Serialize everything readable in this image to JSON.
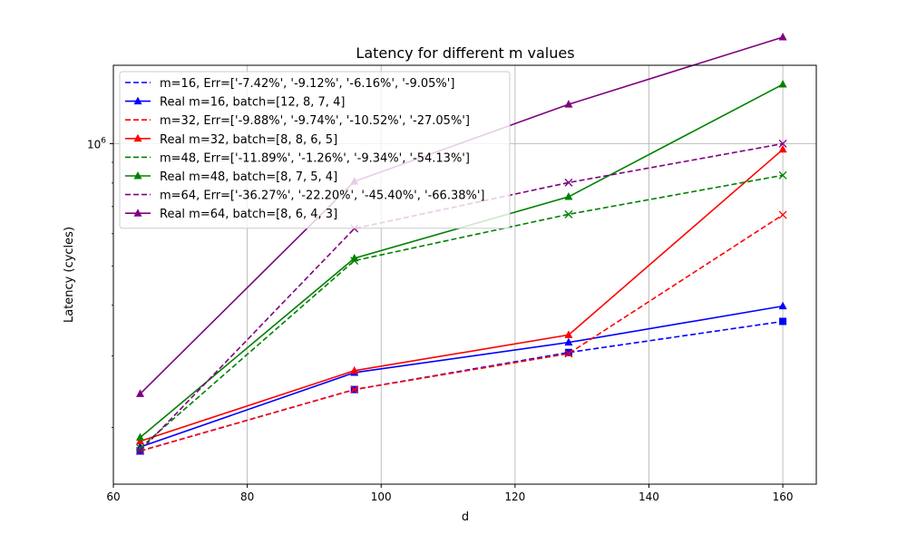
{
  "chart_data": {
    "type": "line",
    "title": "Latency for different m values",
    "xlabel": "d",
    "ylabel": "Latency (cycles)",
    "xlim": [
      60,
      165
    ],
    "ylim": [
      145000,
      1560000
    ],
    "yscale": "log",
    "grid": true,
    "legend_position": "upper-left",
    "x": [
      64,
      96,
      128,
      160
    ],
    "xticks": [
      60,
      80,
      100,
      120,
      140,
      160
    ],
    "yticks": [
      {
        "value": 1000000,
        "label": "10^6"
      }
    ],
    "series": [
      {
        "name": "m=16, Err=['-7.42%', '-9.12%', '-6.16%', '-9.05%']",
        "values": [
          175000,
          248000,
          306000,
          365000
        ],
        "color": "#0000ff",
        "dash": true,
        "marker": "square"
      },
      {
        "name": "Real m=16, batch=[12, 8, 7, 4]",
        "values": [
          179000,
          273000,
          324000,
          398000
        ],
        "color": "#0000ff",
        "dash": false,
        "marker": "triangle"
      },
      {
        "name": "m=32, Err=['-9.88%', '-9.74%', '-10.52%', '-27.05%']",
        "values": [
          175000,
          248000,
          304000,
          668000
        ],
        "color": "#ff0000",
        "dash": true,
        "marker": "x"
      },
      {
        "name": "Real m=32, batch=[8, 8, 6, 5]",
        "values": [
          185000,
          276000,
          338000,
          968000
        ],
        "color": "#ff0000",
        "dash": false,
        "marker": "triangle"
      },
      {
        "name": "m=48, Err=['-11.89%', '-1.26%', '-9.34%', '-54.13%']",
        "values": [
          178000,
          515000,
          670000,
          836000
        ],
        "color": "#008000",
        "dash": true,
        "marker": "x"
      },
      {
        "name": "Real m=48, batch=[8, 7, 5, 4]",
        "values": [
          189000,
          522000,
          740000,
          1400000
        ],
        "color": "#008000",
        "dash": false,
        "marker": "triangle"
      },
      {
        "name": "m=64, Err=['-36.27%', '-22.20%', '-45.40%', '-66.38%']",
        "values": [
          175000,
          618000,
          802000,
          1000000
        ],
        "color": "#800080",
        "dash": true,
        "marker": "x"
      },
      {
        "name": "Real m=64, batch=[8, 6, 4, 3]",
        "values": [
          242000,
          807000,
          1250000,
          1830000
        ],
        "color": "#800080",
        "dash": false,
        "marker": "triangle"
      }
    ]
  }
}
